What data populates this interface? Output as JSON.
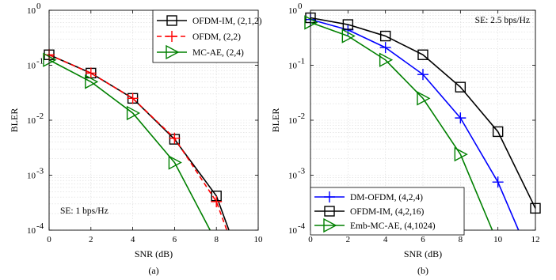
{
  "chart_data": [
    {
      "type": "line",
      "caption": "(a)",
      "xlabel": "SNR (dB)",
      "ylabel": "BLER",
      "xlim": [
        0,
        10
      ],
      "ylim": [
        0.0001,
        1
      ],
      "yscale": "log",
      "grid": true,
      "legend_position": "top-right",
      "x_ticks": [
        "0",
        "2",
        "4",
        "6",
        "8",
        "10"
      ],
      "y_ticks": [
        {
          "base": "10",
          "exp": "0"
        },
        {
          "base": "10",
          "exp": "-1"
        },
        {
          "base": "10",
          "exp": "-2"
        },
        {
          "base": "10",
          "exp": "-3"
        },
        {
          "base": "10",
          "exp": "-4"
        }
      ],
      "annotation": "SE: 1 bps/Hz",
      "series": [
        {
          "name": "OFDM-IM, (2,1,2)",
          "color": "#000000",
          "dash": "solid",
          "marker": "square",
          "x": [
            0,
            2,
            4,
            6,
            8,
            8.6
          ],
          "y": [
            0.155,
            0.072,
            0.025,
            0.0045,
            0.00042,
            0.0001
          ],
          "markers_x": [
            0,
            2,
            4,
            6,
            8
          ]
        },
        {
          "name": "OFDM, (2,2)",
          "color": "#ff0000",
          "dash": "dashed",
          "marker": "plus",
          "x": [
            0,
            2,
            4,
            6,
            8,
            8.5
          ],
          "y": [
            0.155,
            0.072,
            0.025,
            0.0047,
            0.00033,
            0.0001
          ],
          "markers_x": [
            0,
            2,
            4,
            6,
            8
          ]
        },
        {
          "name": "MC-AE, (2,4)",
          "color": "#008000",
          "dash": "solid",
          "marker": "triangle-right",
          "x": [
            0,
            2,
            4,
            6,
            7.7
          ],
          "y": [
            0.125,
            0.05,
            0.0135,
            0.0017,
            0.0001
          ],
          "markers_x": [
            0,
            2,
            4,
            6
          ]
        }
      ]
    },
    {
      "type": "line",
      "caption": "(b)",
      "xlabel": "SNR (dB)",
      "ylabel": "BLER",
      "xlim": [
        0,
        12
      ],
      "ylim": [
        0.0001,
        1
      ],
      "yscale": "log",
      "grid": true,
      "legend_position": "bottom-left",
      "x_ticks": [
        "0",
        "2",
        "4",
        "6",
        "8",
        "10",
        "12"
      ],
      "y_ticks": [
        {
          "base": "10",
          "exp": "0"
        },
        {
          "base": "10",
          "exp": "-1"
        },
        {
          "base": "10",
          "exp": "-2"
        },
        {
          "base": "10",
          "exp": "-3"
        },
        {
          "base": "10",
          "exp": "-4"
        }
      ],
      "annotation": "SE: 2.5 bps/Hz",
      "series": [
        {
          "name": "DM-OFDM, (4,2,4)",
          "color": "#0000ff",
          "dash": "solid",
          "marker": "plus",
          "x": [
            0,
            2,
            4,
            6,
            8,
            10,
            11.1
          ],
          "y": [
            0.68,
            0.44,
            0.21,
            0.068,
            0.011,
            0.00075,
            0.0001
          ],
          "markers_x": [
            0,
            2,
            4,
            6,
            8,
            10
          ]
        },
        {
          "name": "OFDM-IM, (4,2,16)",
          "color": "#000000",
          "dash": "solid",
          "marker": "square",
          "x": [
            0,
            2,
            4,
            6,
            8,
            10,
            12
          ],
          "y": [
            0.73,
            0.55,
            0.34,
            0.155,
            0.04,
            0.0062,
            0.00025
          ],
          "markers_x": [
            0,
            2,
            4,
            6,
            8,
            10,
            12
          ]
        },
        {
          "name": "Emb-MC-AE, (4,1024)",
          "color": "#008000",
          "dash": "solid",
          "marker": "triangle-right",
          "x": [
            0,
            2,
            4,
            6,
            8,
            9.7
          ],
          "y": [
            0.6,
            0.34,
            0.125,
            0.025,
            0.0024,
            0.0001
          ],
          "markers_x": [
            0,
            2,
            4,
            6,
            8
          ]
        }
      ]
    }
  ]
}
